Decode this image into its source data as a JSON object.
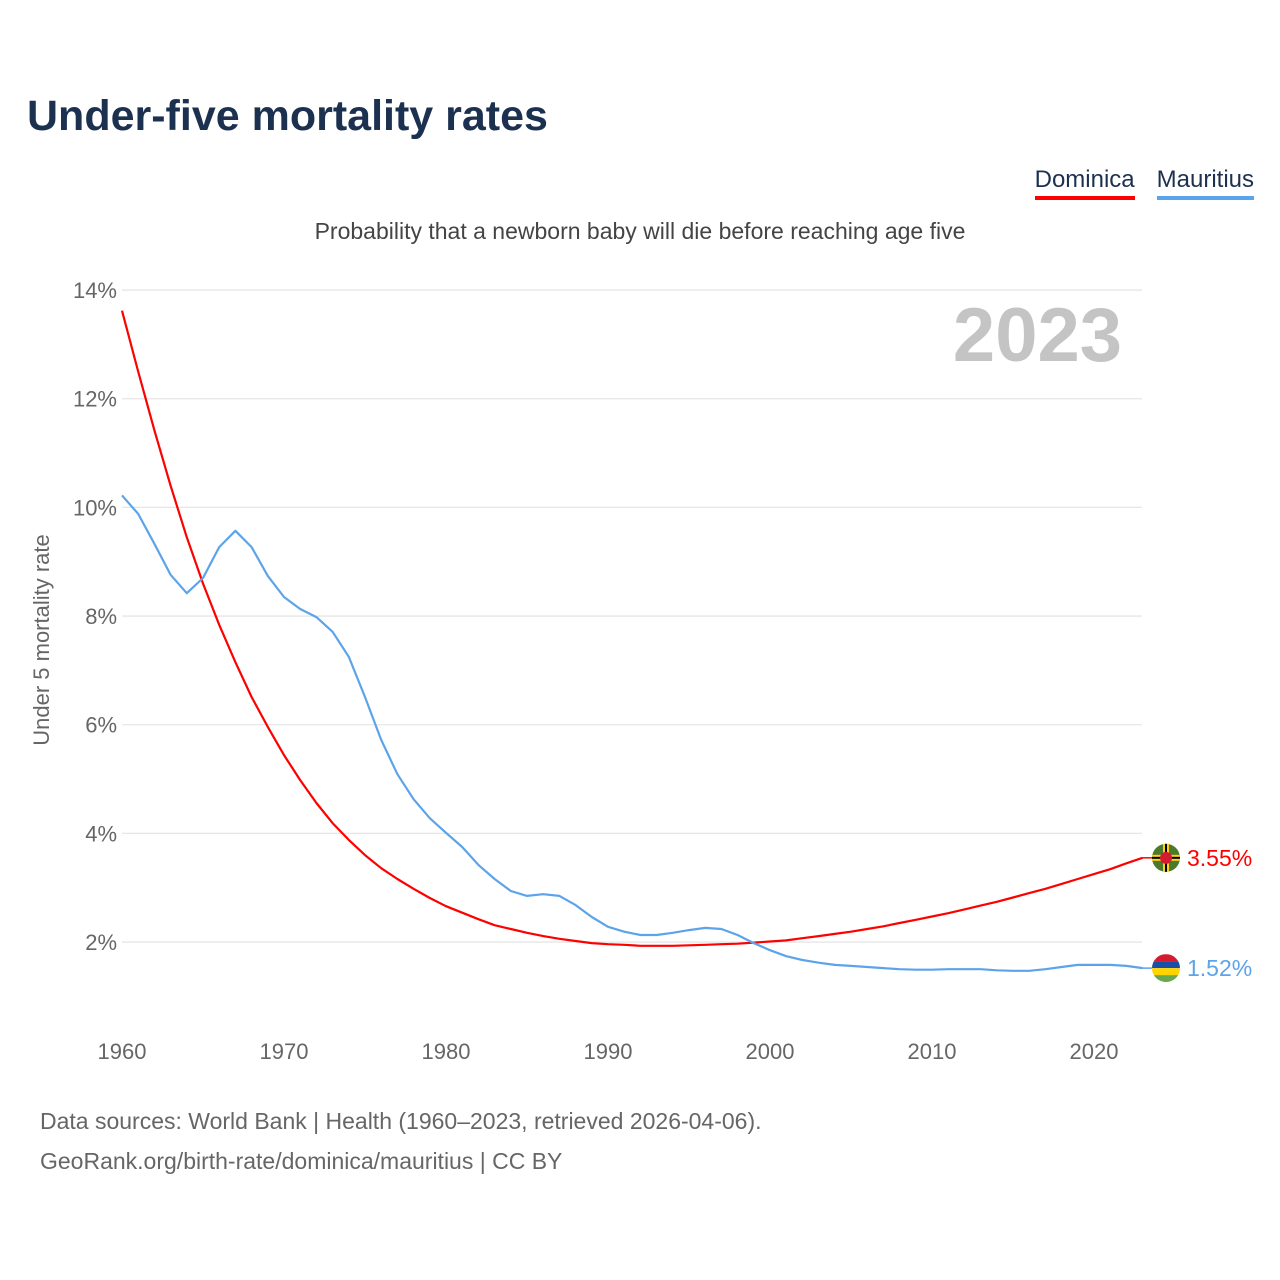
{
  "title": "Under-five mortality rates",
  "legend": [
    {
      "name": "Dominica",
      "color": "#ff0000"
    },
    {
      "name": "Mauritius",
      "color": "#5ca4ea"
    }
  ],
  "subtitle": "Probability that a newborn baby will die before reaching age five",
  "year_watermark": "2023",
  "footer": {
    "line1": "Data sources: World Bank | Health (1960–2023, retrieved 2026-04-06).",
    "line2": "GeoRank.org/birth-rate/dominica/mauritius | CC BY"
  },
  "chart_data": {
    "type": "line",
    "title": "Under-five mortality rates",
    "xlabel": "",
    "ylabel": "Under 5 mortality rate",
    "xlim": [
      1960,
      2023
    ],
    "ylim": [
      0,
      14
    ],
    "grid": true,
    "legend_position": "top-right",
    "x_ticks": [
      1960,
      1970,
      1980,
      1990,
      2000,
      2010,
      2020
    ],
    "y_ticks": [
      2,
      4,
      6,
      8,
      10,
      12,
      14
    ],
    "y_tick_labels": [
      "2%",
      "4%",
      "6%",
      "8%",
      "10%",
      "12%",
      "14%"
    ],
    "x_start": 1960,
    "series": [
      {
        "name": "Dominica",
        "color": "#ff0000",
        "end_label": "3.55%",
        "flag": "dominica-flag",
        "values": [
          13.62,
          12.5,
          11.42,
          10.4,
          9.45,
          8.6,
          7.84,
          7.15,
          6.51,
          5.96,
          5.44,
          4.98,
          4.56,
          4.19,
          3.88,
          3.6,
          3.36,
          3.16,
          2.98,
          2.81,
          2.66,
          2.54,
          2.42,
          2.31,
          2.24,
          2.17,
          2.11,
          2.06,
          2.02,
          1.98,
          1.96,
          1.95,
          1.93,
          1.93,
          1.93,
          1.94,
          1.95,
          1.96,
          1.97,
          1.99,
          2.01,
          2.03,
          2.07,
          2.11,
          2.15,
          2.19,
          2.24,
          2.29,
          2.35,
          2.41,
          2.47,
          2.53,
          2.6,
          2.67,
          2.74,
          2.82,
          2.9,
          2.98,
          3.07,
          3.16,
          3.25,
          3.34,
          3.45,
          3.55
        ]
      },
      {
        "name": "Mauritius",
        "color": "#5ca4ea",
        "end_label": "1.52%",
        "flag": "mauritius-flag",
        "values": [
          10.22,
          9.88,
          9.33,
          8.76,
          8.42,
          8.7,
          9.27,
          9.57,
          9.27,
          8.74,
          8.35,
          8.13,
          7.98,
          7.71,
          7.25,
          6.51,
          5.72,
          5.09,
          4.63,
          4.28,
          4.01,
          3.75,
          3.42,
          3.16,
          2.94,
          2.85,
          2.88,
          2.85,
          2.68,
          2.46,
          2.28,
          2.19,
          2.13,
          2.13,
          2.17,
          2.22,
          2.26,
          2.24,
          2.13,
          1.98,
          1.85,
          1.74,
          1.67,
          1.62,
          1.58,
          1.56,
          1.54,
          1.52,
          1.5,
          1.49,
          1.49,
          1.5,
          1.5,
          1.5,
          1.48,
          1.47,
          1.47,
          1.5,
          1.54,
          1.58,
          1.58,
          1.58,
          1.56,
          1.52
        ]
      }
    ]
  }
}
